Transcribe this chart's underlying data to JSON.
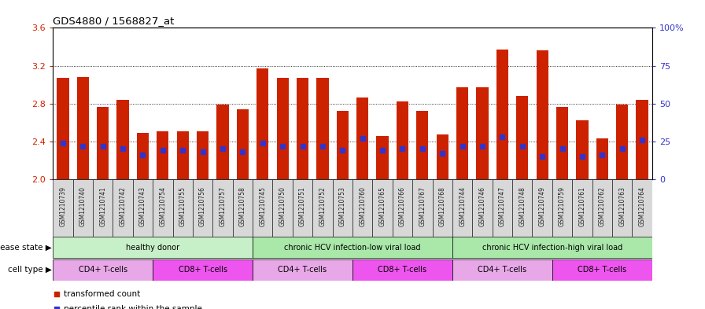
{
  "title": "GDS4880 / 1568827_at",
  "samples": [
    "GSM1210739",
    "GSM1210740",
    "GSM1210741",
    "GSM1210742",
    "GSM1210743",
    "GSM1210754",
    "GSM1210755",
    "GSM1210756",
    "GSM1210757",
    "GSM1210758",
    "GSM1210745",
    "GSM1210750",
    "GSM1210751",
    "GSM1210752",
    "GSM1210753",
    "GSM1210760",
    "GSM1210765",
    "GSM1210766",
    "GSM1210767",
    "GSM1210768",
    "GSM1210744",
    "GSM1210746",
    "GSM1210747",
    "GSM1210748",
    "GSM1210749",
    "GSM1210759",
    "GSM1210761",
    "GSM1210762",
    "GSM1210763",
    "GSM1210764"
  ],
  "transformed_count": [
    3.07,
    3.08,
    2.76,
    2.84,
    2.49,
    2.51,
    2.51,
    2.51,
    2.79,
    2.74,
    3.17,
    3.07,
    3.07,
    3.07,
    2.72,
    2.86,
    2.46,
    2.82,
    2.72,
    2.47,
    2.97,
    2.97,
    3.37,
    2.88,
    3.36,
    2.76,
    2.62,
    2.43,
    2.79,
    2.84
  ],
  "percentile_rank": [
    24,
    22,
    22,
    20,
    16,
    19,
    19,
    18,
    20,
    18,
    24,
    22,
    22,
    22,
    19,
    27,
    19,
    20,
    20,
    17,
    22,
    22,
    28,
    22,
    15,
    20,
    15,
    16,
    20,
    26
  ],
  "ylim_left": [
    2.0,
    3.6
  ],
  "ylim_right": [
    0,
    100
  ],
  "yticks_left": [
    2.0,
    2.4,
    2.8,
    3.2,
    3.6
  ],
  "yticks_right": [
    0,
    25,
    50,
    75,
    100
  ],
  "bar_color": "#cc2200",
  "marker_color": "#3333cc",
  "chart_bg_color": "#ffffff",
  "xtick_bg_color": "#d8d8d8",
  "disease_state_groups": [
    {
      "label": "healthy donor",
      "start": 0,
      "end": 10,
      "color": "#c8f0c8"
    },
    {
      "label": "chronic HCV infection-low viral load",
      "start": 10,
      "end": 20,
      "color": "#aae8aa"
    },
    {
      "label": "chronic HCV infection-high viral load",
      "start": 20,
      "end": 30,
      "color": "#aae8aa"
    }
  ],
  "cell_type_groups": [
    {
      "label": "CD4+ T-cells",
      "start": 0,
      "end": 5,
      "color": "#e8a8e8"
    },
    {
      "label": "CD8+ T-cells",
      "start": 5,
      "end": 10,
      "color": "#ee55ee"
    },
    {
      "label": "CD4+ T-cells",
      "start": 10,
      "end": 15,
      "color": "#e8a8e8"
    },
    {
      "label": "CD8+ T-cells",
      "start": 15,
      "end": 20,
      "color": "#ee55ee"
    },
    {
      "label": "CD4+ T-cells",
      "start": 20,
      "end": 25,
      "color": "#e8a8e8"
    },
    {
      "label": "CD8+ T-cells",
      "start": 25,
      "end": 30,
      "color": "#ee55ee"
    }
  ],
  "disease_state_label": "disease state",
  "cell_type_label": "cell type",
  "left_tick_color": "#cc2200",
  "right_tick_color": "#3333cc",
  "legend_items": [
    "transformed count",
    "percentile rank within the sample"
  ],
  "grid_lines": [
    2.4,
    2.8,
    3.2
  ]
}
